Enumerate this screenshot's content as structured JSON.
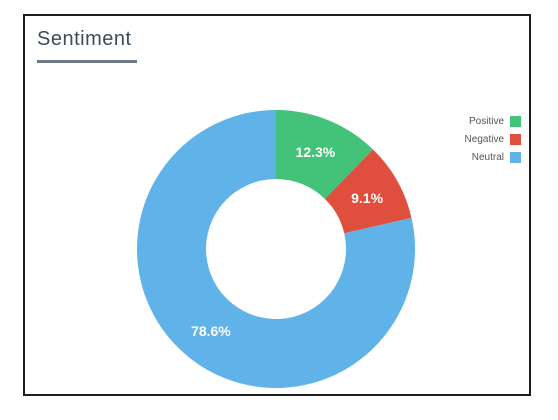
{
  "card": {
    "title": "Sentiment"
  },
  "chart_data": {
    "type": "pie",
    "donut": true,
    "title": "Sentiment",
    "legend_position": "right",
    "slices": [
      {
        "label": "Positive",
        "value": 12.3,
        "display": "12.3%",
        "color": "#43c27a"
      },
      {
        "label": "Negative",
        "value": 9.1,
        "display": "9.1%",
        "color": "#e04e3d"
      },
      {
        "label": "Neutral",
        "value": 78.6,
        "display": "78.6%",
        "color": "#5fb3e8"
      }
    ]
  }
}
